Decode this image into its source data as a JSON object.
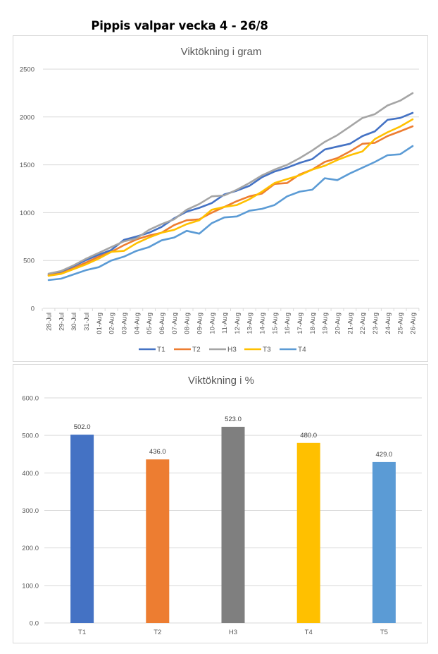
{
  "page": {
    "title": "Pippis valpar vecka 4 - 26/8"
  },
  "chart_data": [
    {
      "type": "line",
      "title": "Viktökning i gram",
      "xlabel": "",
      "ylabel": "",
      "ylim": [
        0,
        2500
      ],
      "yticks": [
        "0",
        "500",
        "1000",
        "1500",
        "2000",
        "2500"
      ],
      "grid": true,
      "legend": "bottom",
      "categories": [
        "28-Jul",
        "29-Jul",
        "30-Jul",
        "31-Jul",
        "01-Aug",
        "02-Aug",
        "03-Aug",
        "04-Aug",
        "05-Aug",
        "06-Aug",
        "07-Aug",
        "08-Aug",
        "09-Aug",
        "10-Aug",
        "11-Aug",
        "12-Aug",
        "13-Aug",
        "14-Aug",
        "15-Aug",
        "16-Aug",
        "17-Aug",
        "18-Aug",
        "19-Aug",
        "20-Aug",
        "21-Aug",
        "22-Aug",
        "23-Aug",
        "24-Aug",
        "25-Aug",
        "26-Aug"
      ],
      "series": [
        {
          "name": "T1",
          "color": "#4472c4",
          "values": [
            355,
            380,
            440,
            505,
            560,
            610,
            715,
            750,
            790,
            850,
            940,
            1010,
            1050,
            1100,
            1190,
            1230,
            1280,
            1370,
            1430,
            1470,
            1520,
            1560,
            1660,
            1690,
            1720,
            1800,
            1850,
            1970,
            1990,
            2043
          ]
        },
        {
          "name": "T2",
          "color": "#ed7d31",
          "values": [
            345,
            365,
            420,
            480,
            540,
            590,
            660,
            720,
            760,
            790,
            870,
            920,
            930,
            1000,
            1060,
            1120,
            1170,
            1200,
            1300,
            1310,
            1400,
            1450,
            1530,
            1570,
            1640,
            1720,
            1730,
            1800,
            1850,
            1903
          ]
        },
        {
          "name": "H3",
          "color": "#a5a5a5",
          "values": [
            362,
            390,
            450,
            520,
            580,
            640,
            700,
            730,
            820,
            880,
            930,
            1030,
            1090,
            1170,
            1180,
            1240,
            1310,
            1390,
            1450,
            1500,
            1570,
            1650,
            1740,
            1810,
            1900,
            1990,
            2030,
            2120,
            2170,
            2249
          ]
        },
        {
          "name": "T3",
          "color": "#ffc000",
          "values": [
            340,
            360,
            410,
            460,
            520,
            590,
            600,
            680,
            740,
            790,
            820,
            880,
            920,
            1030,
            1060,
            1080,
            1140,
            1220,
            1310,
            1350,
            1390,
            1450,
            1490,
            1550,
            1600,
            1640,
            1770,
            1840,
            1900,
            1976
          ]
        },
        {
          "name": "T4",
          "color": "#5b9bd5",
          "values": [
            295,
            310,
            355,
            400,
            430,
            500,
            540,
            600,
            640,
            710,
            740,
            810,
            780,
            890,
            950,
            960,
            1020,
            1040,
            1080,
            1170,
            1220,
            1240,
            1360,
            1340,
            1410,
            1470,
            1530,
            1600,
            1610,
            1696
          ]
        }
      ]
    },
    {
      "type": "bar",
      "title": "Viktökning i %",
      "xlabel": "",
      "ylabel": "",
      "ylim": [
        0,
        600
      ],
      "yticks": [
        "0.0",
        "100.0",
        "200.0",
        "300.0",
        "400.0",
        "500.0",
        "600.0"
      ],
      "grid": true,
      "categories": [
        "T1",
        "T2",
        "H3",
        "T4",
        "T5"
      ],
      "values": [
        502.0,
        436.0,
        523.0,
        480.0,
        429.0
      ],
      "data_labels": [
        "502.0",
        "436.0",
        "523.0",
        "480.0",
        "429.0"
      ],
      "colors": [
        "#4472c4",
        "#ed7d31",
        "#7f7f7f",
        "#ffc000",
        "#5b9bd5"
      ]
    }
  ]
}
